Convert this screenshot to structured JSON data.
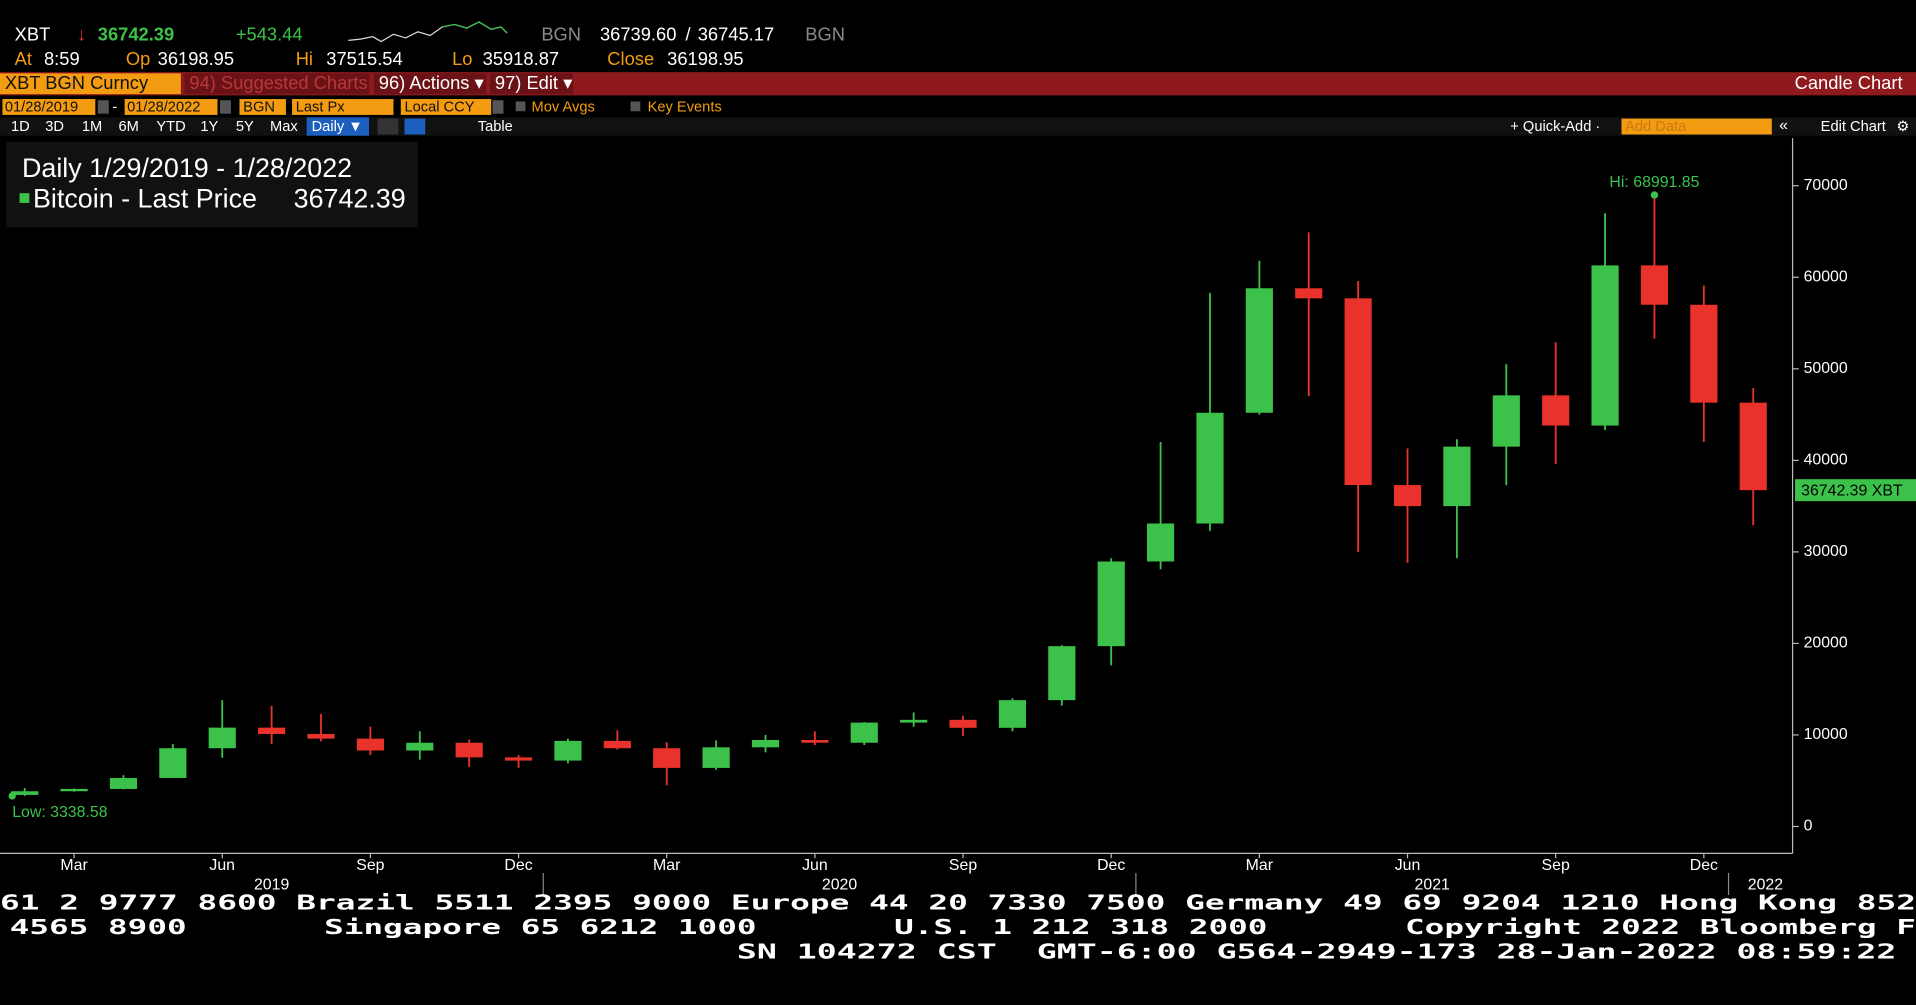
{
  "header": {
    "quote": {
      "ticker": "XBT",
      "arrow": "↓",
      "last": "36742.39",
      "change": "+543.44",
      "source": "BGN",
      "bid": "36739.60",
      "sep": "/",
      "ask": "36745.17",
      "source2": "BGN"
    },
    "stats": [
      {
        "label": "At",
        "value": "8:59"
      },
      {
        "label": "Op",
        "value": "36198.95"
      },
      {
        "label": "Hi",
        "value": "37515.54"
      },
      {
        "label": "Lo",
        "value": "35918.87"
      },
      {
        "label": "Close",
        "value": "36198.95"
      }
    ]
  },
  "menu": {
    "security": "XBT BGN Curncy",
    "suggested": "94) Suggested Charts",
    "actions": "96) Actions ▾",
    "edit": "97) Edit ▾",
    "view": "Candle Chart"
  },
  "settings": {
    "start": "01/28/2019",
    "dash": "-",
    "end": "01/28/2022",
    "source": "BGN",
    "field": "Last Px",
    "currency": "Local CCY",
    "mov_avgs": "Mov Avgs",
    "key_events": "Key Events"
  },
  "toolbar": {
    "ranges": [
      "1D",
      "3D",
      "1M",
      "6M",
      "YTD",
      "1Y",
      "5Y",
      "Max"
    ],
    "period": "Daily ▼",
    "table": "Table",
    "quick_add": "+ Quick-Add ·",
    "add_data": "Add Data",
    "collapse": "«",
    "edit_chart": "Edit Chart",
    "settings": "⚙"
  },
  "chart_data": {
    "type": "candlestick",
    "up_color": "#3cc24a",
    "down_color": "#e8322b",
    "legend": {
      "title": "Daily 1/29/2019 - 1/28/2022",
      "series": "Bitcoin - Last Price"
    },
    "annotations": {
      "high": "Hi: 68991.85",
      "low": "Low: 3338.58",
      "last": "36742.39 XBT"
    },
    "x": [
      "2019-02",
      "2019-03",
      "2019-04",
      "2019-05",
      "2019-06",
      "2019-07",
      "2019-08",
      "2019-09",
      "2019-10",
      "2019-11",
      "2019-12",
      "2020-01",
      "2020-02",
      "2020-03",
      "2020-04",
      "2020-05",
      "2020-06",
      "2020-07",
      "2020-08",
      "2020-09",
      "2020-10",
      "2020-11",
      "2020-12",
      "2021-01",
      "2021-02",
      "2021-03",
      "2021-04",
      "2021-05",
      "2021-06",
      "2021-07",
      "2021-08",
      "2021-09",
      "2021-10",
      "2021-11",
      "2021-12",
      "2022-01"
    ],
    "open": [
      3450,
      3850,
      4100,
      5300,
      8550,
      10800,
      10100,
      9600,
      8300,
      9150,
      7550,
      7200,
      9350,
      8550,
      6400,
      8650,
      9450,
      9150,
      11350,
      11650,
      10780,
      13800,
      19700,
      28950,
      33100,
      45200,
      58800,
      57700,
      37300,
      35000,
      41500,
      47100,
      43800,
      61300,
      57000,
      46300
    ],
    "high": [
      4200,
      4150,
      5600,
      9000,
      13800,
      13200,
      12300,
      10900,
      10400,
      9500,
      7800,
      9600,
      10500,
      9200,
      9400,
      10000,
      10400,
      11400,
      12450,
      12100,
      14000,
      19800,
      29300,
      42000,
      58300,
      61800,
      64900,
      59600,
      41300,
      42300,
      50500,
      52900,
      67000,
      68991.85,
      59100,
      47900
    ],
    "low": [
      3338.58,
      3800,
      4050,
      5300,
      7500,
      9000,
      9300,
      7800,
      7300,
      6500,
      6400,
      6900,
      8400,
      4500,
      6200,
      8100,
      8900,
      8900,
      10900,
      9900,
      10400,
      13200,
      17600,
      28100,
      32300,
      45000,
      47000,
      30000,
      28800,
      29300,
      37300,
      39600,
      43300,
      53300,
      42000,
      32900
    ],
    "close": [
      3850,
      4100,
      5300,
      8550,
      10800,
      10100,
      9600,
      8300,
      9150,
      7550,
      7200,
      9350,
      8550,
      6400,
      8650,
      9450,
      9150,
      11350,
      11650,
      10780,
      13800,
      19700,
      28950,
      33100,
      45200,
      58800,
      57700,
      37300,
      35000,
      41500,
      47100,
      43800,
      61300,
      57000,
      46300,
      36742.39
    ],
    "xticks": [
      {
        "value": "2019-03",
        "label": "Mar"
      },
      {
        "value": "2019-06",
        "label": "Jun"
      },
      {
        "value": "2019-09",
        "label": "Sep"
      },
      {
        "value": "2019-12",
        "label": "Dec"
      },
      {
        "value": "2020-03",
        "label": "Mar"
      },
      {
        "value": "2020-06",
        "label": "Jun"
      },
      {
        "value": "2020-09",
        "label": "Sep"
      },
      {
        "value": "2020-12",
        "label": "Dec"
      },
      {
        "value": "2021-03",
        "label": "Mar"
      },
      {
        "value": "2021-06",
        "label": "Jun"
      },
      {
        "value": "2021-09",
        "label": "Sep"
      },
      {
        "value": "2021-12",
        "label": "Dec"
      }
    ],
    "year_labels": [
      "2019",
      "2020",
      "2021",
      "2022"
    ],
    "ylim": [
      -2940,
      75200
    ],
    "yticks": [
      0,
      10000,
      20000,
      30000,
      40000,
      50000,
      60000,
      70000
    ]
  },
  "footer": [
    "61 2 9777 8600 Brazil 5511 2395 9000 Europe 44 20 7330 7500 Germany 49 69 9204 1210 Hong Kong 852",
    "4565 8900       Singapore 65 6212 1000       U.S. 1 212 318 2000       Copyright 2022 Bloomberg F",
    "SN 104272 CST  GMT-6:00 G564-2949-173 28-Jan-2022 08:59:22"
  ]
}
